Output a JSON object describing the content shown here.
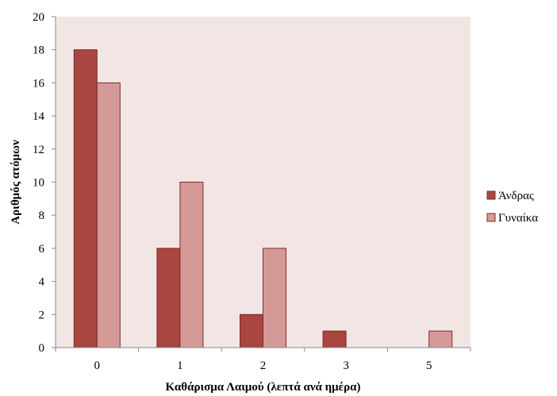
{
  "chart_data": {
    "type": "bar",
    "title": "",
    "xlabel": "Καθάρισμα Λαιμού (λεπτά ανά ημέρα)",
    "ylabel": "Αριθμός ατόμων",
    "categories": [
      "0",
      "1",
      "2",
      "3",
      "5"
    ],
    "series": [
      {
        "name": "Άνδρας",
        "values": [
          18,
          6,
          2,
          1,
          0
        ],
        "color": "#a8463f"
      },
      {
        "name": "Γυναίκα",
        "values": [
          16,
          10,
          6,
          0,
          1
        ],
        "color": "#d59a98"
      }
    ],
    "ylim": [
      0,
      20
    ],
    "yticks": [
      0,
      2,
      4,
      6,
      8,
      10,
      12,
      14,
      16,
      18,
      20
    ],
    "grid": false,
    "legend_position": "right",
    "plot_background": "#f2e6e5",
    "bar_edge_color": "#7a2b26"
  }
}
